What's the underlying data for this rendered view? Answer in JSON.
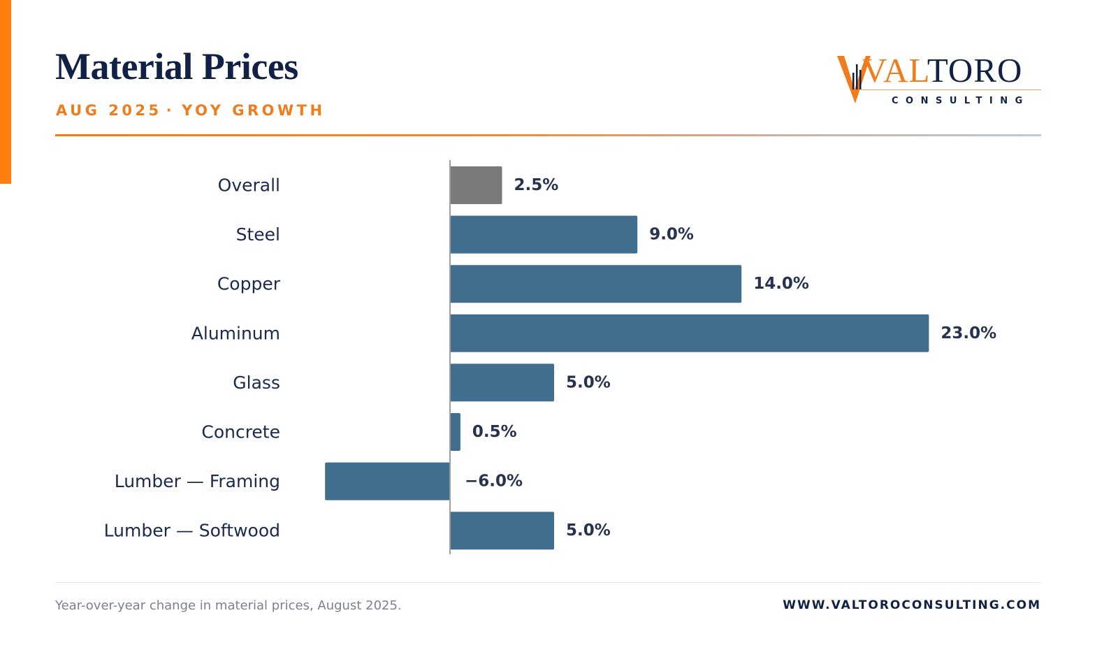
{
  "header": {
    "title": "Material Prices",
    "period": "AUG 2025",
    "separator": "·",
    "metric": "YOY GROWTH"
  },
  "logo": {
    "word_accent": "VAL",
    "word_main": "TORO",
    "tagline": "CONSULTING"
  },
  "colors": {
    "accent": "#ff7f0e",
    "navy": "#112145",
    "bar_default": "#416e8f",
    "bar_overall": "#7a7a7a"
  },
  "chart_data": {
    "type": "bar",
    "orientation": "horizontal",
    "categories": [
      "Overall",
      "Steel",
      "Copper",
      "Aluminum",
      "Glass",
      "Concrete",
      "Lumber — Framing",
      "Lumber — Softwood"
    ],
    "values": [
      2.5,
      9.0,
      14.0,
      23.0,
      5.0,
      0.5,
      -6.0,
      5.0
    ],
    "value_labels": [
      "2.5%",
      "9.0%",
      "14.0%",
      "23.0%",
      "5.0%",
      "0.5%",
      "−6.0%",
      "5.0%"
    ],
    "highlight_category": "Overall",
    "xlim": [
      -6.0,
      23.0
    ],
    "grid": false,
    "legend": "none"
  },
  "footer": {
    "note": "Year-over-year change in material prices, August 2025.",
    "url": "WWW.VALTOROCONSULTING.COM"
  }
}
